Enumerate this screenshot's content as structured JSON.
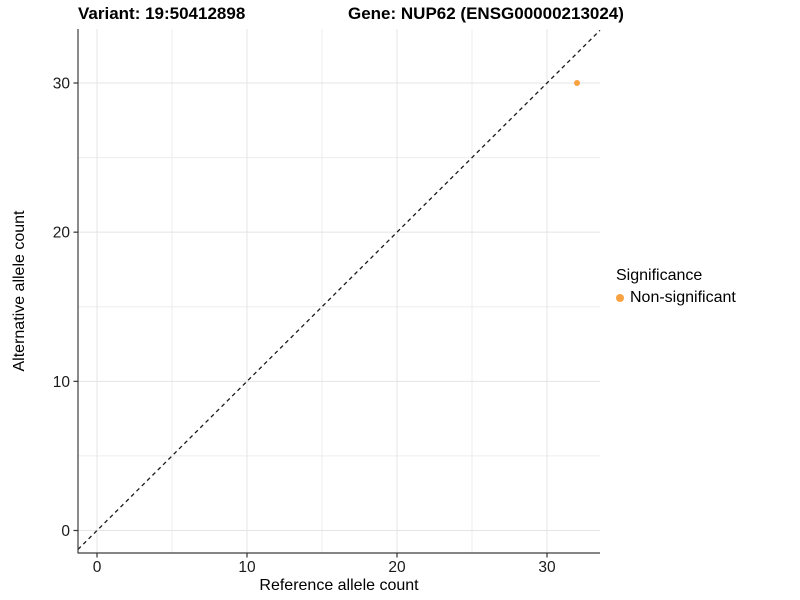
{
  "titles": {
    "variant": "Variant: 19:50412898",
    "gene": "Gene: NUP62 (ENSG00000213024)"
  },
  "chart_data": {
    "type": "scatter",
    "xlabel": "Reference allele count",
    "ylabel": "Alternative allele count",
    "xlim": [
      -1.27,
      33.53
    ],
    "ylim": [
      -1.51,
      33.62
    ],
    "xticks": [
      0,
      10,
      20,
      30
    ],
    "yticks": [
      0,
      10,
      20,
      30
    ],
    "minor_xticks": [
      5,
      15,
      25
    ],
    "minor_yticks": [
      5,
      15,
      25
    ],
    "grid": "major+minor",
    "abline": {
      "slope": 1,
      "intercept": 0,
      "style": "dashed",
      "color": "#1a1a1a"
    },
    "points": [
      {
        "x": 32,
        "y": 30,
        "series": "Non-significant",
        "color": "#F9A242"
      }
    ],
    "legend": {
      "title": "Significance",
      "position": "right",
      "items": [
        {
          "label": "Non-significant",
          "color": "#F9A242"
        }
      ]
    }
  },
  "colors": {
    "background": "#FFFFFF",
    "point": "#F9A242",
    "grid_major": "#E4E4E4",
    "grid_minor": "#EDEDED",
    "axis_line": "#3C3C3C",
    "tick_mark": "#333333",
    "tick_label": "#1A1A1A",
    "dashed_line": "#1A1A1A"
  }
}
